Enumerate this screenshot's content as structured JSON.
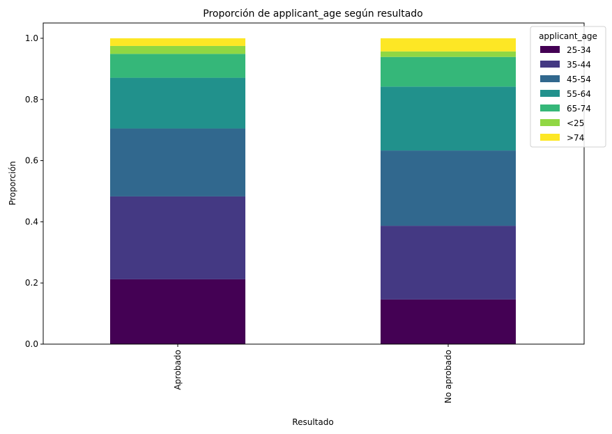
{
  "chart_data": {
    "type": "bar",
    "stacked": true,
    "title": "Proporción de applicant_age según resultado",
    "xlabel": "Resultado",
    "ylabel": "Proporción",
    "ylim": [
      0,
      1.05
    ],
    "yticks": [
      0.0,
      0.2,
      0.4,
      0.6,
      0.8,
      1.0
    ],
    "ytick_labels": [
      "0.0",
      "0.2",
      "0.4",
      "0.6",
      "0.8",
      "1.0"
    ],
    "categories": [
      "Aprobado",
      "No aprobado"
    ],
    "legend": {
      "title": "applicant_age",
      "placement": "top-right"
    },
    "grid": false,
    "series": [
      {
        "name": "25-34",
        "color": "#440154",
        "values": [
          0.212,
          0.146
        ]
      },
      {
        "name": "35-44",
        "color": "#443983",
        "values": [
          0.271,
          0.241
        ]
      },
      {
        "name": "45-54",
        "color": "#31688e",
        "values": [
          0.222,
          0.246
        ]
      },
      {
        "name": "55-64",
        "color": "#21918c",
        "values": [
          0.166,
          0.209
        ]
      },
      {
        "name": "65-74",
        "color": "#35b779",
        "values": [
          0.078,
          0.097
        ]
      },
      {
        "name": "<25",
        "color": "#90d743",
        "values": [
          0.026,
          0.018
        ]
      },
      {
        "name": ">74",
        "color": "#fde725",
        "values": [
          0.025,
          0.043
        ]
      }
    ]
  }
}
